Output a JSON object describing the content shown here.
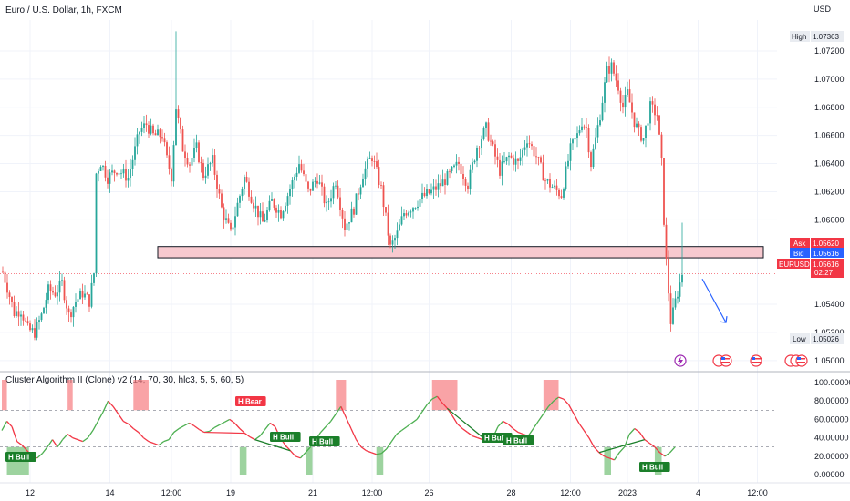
{
  "chart_data": [
    {
      "type": "candlestick",
      "title": "Euro / U.S. Dollar, 1h, FXCM",
      "currency_label": "USD",
      "y_ticks": [
        "1.07200",
        "1.07000",
        "1.06800",
        "1.06600",
        "1.06400",
        "1.06200",
        "1.06000",
        "1.05400",
        "1.05200",
        "1.05000"
      ],
      "ylim": [
        1.0496,
        1.0742
      ],
      "x_ticks": [
        "12",
        "14",
        "12:00",
        "19",
        "21",
        "12:00",
        "26",
        "28",
        "12:00",
        "2023",
        "4",
        "12:00"
      ],
      "badges": {
        "high_label": "High",
        "high_value": "1.07363",
        "low_label": "Low",
        "low_value": "1.05026",
        "ask_label": "Ask",
        "ask_value": "1.05620",
        "bid_label": "Bid",
        "bid_value": "1.05616",
        "symbol_label": "EURUSD",
        "symbol_value": "1.05616",
        "countdown": "02:27"
      },
      "support_zone": [
        1.0573,
        1.0581
      ],
      "last_price": 1.05616,
      "arrow": {
        "from": [
          305,
          1.0558
        ],
        "to": [
          312,
          1.0527
        ]
      },
      "anchors": [
        [
          0,
          1.0563
        ],
        [
          2,
          1.0552
        ],
        [
          5,
          1.0534
        ],
        [
          8,
          1.0536
        ],
        [
          11,
          1.0522
        ],
        [
          14,
          1.052
        ],
        [
          17,
          1.0532
        ],
        [
          20,
          1.055
        ],
        [
          23,
          1.0548
        ],
        [
          26,
          1.0555
        ],
        [
          29,
          1.0532
        ],
        [
          32,
          1.0542
        ],
        [
          35,
          1.0548
        ],
        [
          38,
          1.0542
        ],
        [
          40,
          1.0562
        ],
        [
          41,
          1.0633
        ],
        [
          43,
          1.0641
        ],
        [
          46,
          1.063
        ],
        [
          50,
          1.0636
        ],
        [
          55,
          1.063
        ],
        [
          60,
          1.0663
        ],
        [
          63,
          1.0668
        ],
        [
          66,
          1.066
        ],
        [
          70,
          1.066
        ],
        [
          72,
          1.0643
        ],
        [
          74,
          1.0631
        ],
        [
          76,
          1.068
        ],
        [
          79,
          1.0651
        ],
        [
          82,
          1.064
        ],
        [
          85,
          1.0651
        ],
        [
          88,
          1.0632
        ],
        [
          92,
          1.0642
        ],
        [
          96,
          1.0608
        ],
        [
          100,
          1.059
        ],
        [
          103,
          1.0611
        ],
        [
          106,
          1.063
        ],
        [
          110,
          1.0612
        ],
        [
          114,
          1.0598
        ],
        [
          118,
          1.0613
        ],
        [
          122,
          1.0605
        ],
        [
          126,
          1.0622
        ],
        [
          130,
          1.064
        ],
        [
          134,
          1.062
        ],
        [
          138,
          1.063
        ],
        [
          142,
          1.0609
        ],
        [
          146,
          1.0628
        ],
        [
          150,
          1.0595
        ],
        [
          154,
          1.0608
        ],
        [
          158,
          1.0633
        ],
        [
          162,
          1.0645
        ],
        [
          166,
          1.0622
        ],
        [
          170,
          1.058
        ],
        [
          173,
          1.059
        ],
        [
          176,
          1.0605
        ],
        [
          180,
          1.061
        ],
        [
          184,
          1.0616
        ],
        [
          188,
          1.062
        ],
        [
          192,
          1.0625
        ],
        [
          196,
          1.0632
        ],
        [
          200,
          1.064
        ],
        [
          204,
          1.0625
        ],
        [
          208,
          1.0652
        ],
        [
          212,
          1.0665
        ],
        [
          215,
          1.065
        ],
        [
          218,
          1.0635
        ],
        [
          222,
          1.0645
        ],
        [
          226,
          1.064
        ],
        [
          230,
          1.0658
        ],
        [
          234,
          1.0645
        ],
        [
          238,
          1.0628
        ],
        [
          242,
          1.0622
        ],
        [
          245,
          1.0618
        ],
        [
          249,
          1.065
        ],
        [
          252,
          1.066
        ],
        [
          254,
          1.067
        ],
        [
          256,
          1.0665
        ],
        [
          258,
          1.064
        ],
        [
          262,
          1.0675
        ],
        [
          265,
          1.0706
        ],
        [
          267,
          1.0709
        ],
        [
          270,
          1.0695
        ],
        [
          272,
          1.068
        ],
        [
          274,
          1.069
        ],
        [
          277,
          1.067
        ],
        [
          279,
          1.0662
        ],
        [
          281,
          1.0658
        ],
        [
          284,
          1.068
        ],
        [
          287,
          1.0675
        ],
        [
          289,
          1.064
        ],
        [
          290,
          1.06
        ],
        [
          291,
          1.057
        ],
        [
          293,
          1.0528
        ],
        [
          294,
          1.0534
        ],
        [
          295,
          1.0542
        ],
        [
          297,
          1.0555
        ],
        [
          298,
          1.0562
        ]
      ],
      "n_candles": 299
    },
    {
      "type": "line",
      "indicator_title": "Cluster Algorithm II (Clone) v2 (14, 70, 30, hlc3, 5, 5, 60, 5)",
      "y_ticks": [
        "100.00000",
        "80.00000",
        "60.00000",
        "40.00000",
        "20.00000",
        "0.00000"
      ],
      "ylim": [
        0,
        100
      ],
      "upper_level": 70,
      "lower_level": 30,
      "series": [
        {
          "values": [
            48,
            58,
            52,
            36,
            32,
            26,
            20,
            18,
            23,
            30,
            38,
            30,
            38,
            44,
            40,
            38,
            36,
            40,
            48,
            58,
            68,
            80,
            74,
            66,
            58,
            55,
            50,
            46,
            40,
            36,
            34,
            32,
            36,
            38,
            46,
            50,
            53,
            56,
            53,
            49,
            46,
            47,
            51,
            54,
            57,
            60,
            56,
            50,
            45,
            41,
            38,
            42,
            49,
            56,
            52,
            40,
            32,
            26,
            20,
            18,
            24,
            30,
            38,
            46,
            52,
            58,
            66,
            74,
            62,
            50,
            38,
            30,
            26,
            24,
            22,
            23,
            28,
            36,
            44,
            48,
            52,
            56,
            60,
            68,
            76,
            82,
            85,
            78,
            72,
            64,
            55,
            50,
            46,
            42,
            40,
            38,
            36,
            40,
            52,
            58,
            55,
            50,
            46,
            44,
            42,
            50,
            58,
            66,
            74,
            80,
            84,
            82,
            76,
            66,
            56,
            48,
            40,
            30,
            24,
            20,
            18,
            16,
            24,
            30,
            44,
            50,
            46,
            38,
            34,
            30,
            24,
            20,
            24,
            30
          ]
        }
      ],
      "bear_label": "H Bear",
      "bull_label": "H Bull",
      "shaded_high": [
        [
          0,
          1
        ],
        [
          13,
          14
        ],
        [
          26,
          29
        ],
        [
          66,
          68
        ],
        [
          85,
          90
        ],
        [
          107,
          110
        ]
      ],
      "shaded_low": [
        [
          1,
          5
        ],
        [
          47,
          48
        ],
        [
          60,
          61
        ],
        [
          74,
          75
        ],
        [
          119,
          120
        ],
        [
          129,
          130
        ]
      ]
    }
  ]
}
